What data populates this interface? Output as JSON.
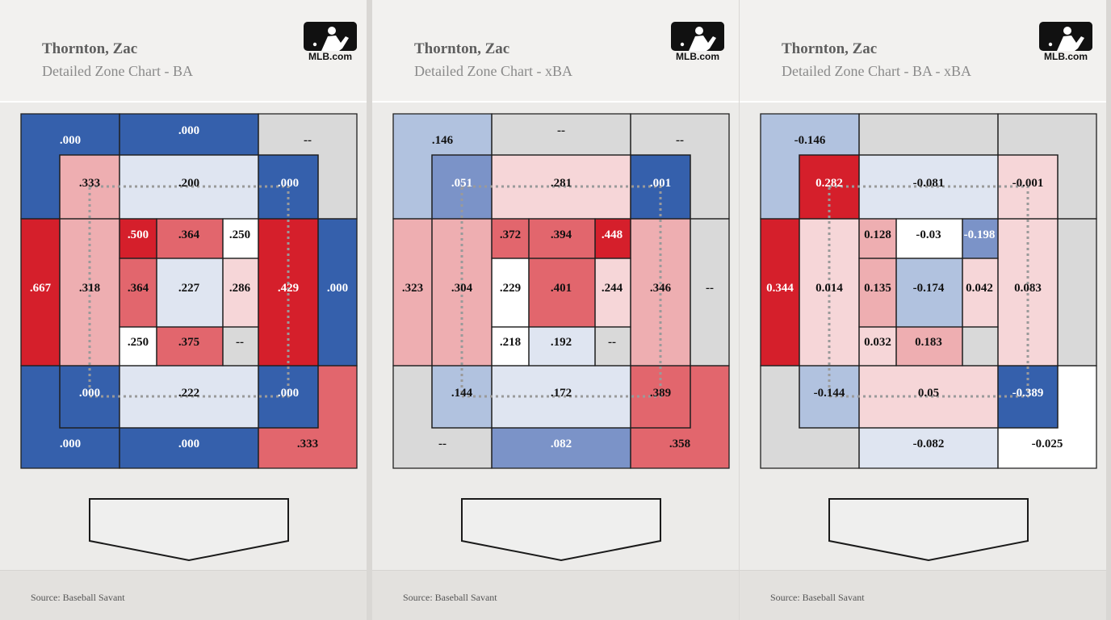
{
  "panels": [
    {
      "player": "Thornton, Zac",
      "subtitle": "Detailed Zone Chart - BA",
      "logo_text": "MLB.com",
      "source": "Source: Baseball Savant"
    },
    {
      "player": "Thornton, Zac",
      "subtitle": "Detailed Zone Chart - xBA",
      "logo_text": "MLB.com",
      "source": "Source: Baseball Savant"
    },
    {
      "player": "Thornton, Zac",
      "subtitle": "Detailed Zone Chart - BA - xBA",
      "logo_text": "MLB.com",
      "source": "Source: Baseball Savant"
    }
  ],
  "colors": {
    "blue_dark": "#3560ac",
    "blue_mid": "#7b93c8",
    "blue_light": "#b1c2df",
    "blue_pale": "#dfe5f1",
    "white": "#ffffff",
    "gray": "#d9d9d9",
    "red_pale": "#f6d6d8",
    "red_light": "#eeaeb1",
    "red_mid": "#e2666d",
    "red_dark": "#d51f2b"
  },
  "chart_data": [
    {
      "type": "heatmap",
      "title": "Detailed Zone Chart - BA",
      "zones": {
        "out_top_left": {
          "label": ".000",
          "color": "blue_dark"
        },
        "out_top_mid": {
          "label": ".000",
          "color": "blue_dark"
        },
        "out_top_right": {
          "label": "--",
          "color": "gray"
        },
        "out_left": {
          "label": ".667",
          "color": "red_dark"
        },
        "out_right": {
          "label": ".000",
          "color": "blue_dark"
        },
        "out_bot_left": {
          "label": ".000",
          "color": "blue_dark"
        },
        "out_bot_mid": {
          "label": ".000",
          "color": "blue_dark"
        },
        "out_bot_right": {
          "label": ".333",
          "color": "red_mid"
        },
        "sh_top_left": {
          "label": ".333",
          "color": "red_light"
        },
        "sh_top_mid": {
          "label": ".200",
          "color": "blue_pale"
        },
        "sh_top_right": {
          "label": ".000",
          "color": "blue_dark"
        },
        "sh_left": {
          "label": ".318",
          "color": "red_light"
        },
        "sh_right": {
          "label": ".429",
          "color": "red_dark"
        },
        "sh_bot_left": {
          "label": ".000",
          "color": "blue_dark"
        },
        "sh_bot_mid": {
          "label": ".222",
          "color": "blue_pale"
        },
        "sh_bot_right": {
          "label": ".000",
          "color": "blue_dark"
        },
        "z1": {
          "label": ".500",
          "color": "red_dark"
        },
        "z2": {
          "label": ".364",
          "color": "red_mid"
        },
        "z3": {
          "label": ".250",
          "color": "white"
        },
        "z4": {
          "label": ".364",
          "color": "red_mid"
        },
        "z5": {
          "label": ".227",
          "color": "blue_pale"
        },
        "z6": {
          "label": ".286",
          "color": "red_pale"
        },
        "z7": {
          "label": ".250",
          "color": "white"
        },
        "z8": {
          "label": ".375",
          "color": "red_mid"
        },
        "z9": {
          "label": "--",
          "color": "gray"
        }
      }
    },
    {
      "type": "heatmap",
      "title": "Detailed Zone Chart - xBA",
      "zones": {
        "out_top_left": {
          "label": ".146",
          "color": "blue_light"
        },
        "out_top_mid": {
          "label": "--",
          "color": "gray"
        },
        "out_top_right": {
          "label": "--",
          "color": "gray"
        },
        "out_left": {
          "label": ".323",
          "color": "red_light"
        },
        "out_right": {
          "label": "--",
          "color": "gray"
        },
        "out_bot_left": {
          "label": "--",
          "color": "gray"
        },
        "out_bot_mid": {
          "label": ".082",
          "color": "blue_mid"
        },
        "out_bot_right": {
          "label": ".358",
          "color": "red_mid"
        },
        "sh_top_left": {
          "label": ".051",
          "color": "blue_mid"
        },
        "sh_top_mid": {
          "label": ".281",
          "color": "red_pale"
        },
        "sh_top_right": {
          "label": ".001",
          "color": "blue_dark"
        },
        "sh_left": {
          "label": ".304",
          "color": "red_light"
        },
        "sh_right": {
          "label": ".346",
          "color": "red_light"
        },
        "sh_bot_left": {
          "label": ".144",
          "color": "blue_light"
        },
        "sh_bot_mid": {
          "label": ".172",
          "color": "blue_pale"
        },
        "sh_bot_right": {
          "label": ".389",
          "color": "red_mid"
        },
        "z1": {
          "label": ".372",
          "color": "red_mid"
        },
        "z2": {
          "label": ".394",
          "color": "red_mid"
        },
        "z3": {
          "label": ".448",
          "color": "red_dark"
        },
        "z4": {
          "label": ".229",
          "color": "white"
        },
        "z5": {
          "label": ".401",
          "color": "red_mid"
        },
        "z6": {
          "label": ".244",
          "color": "red_pale"
        },
        "z7": {
          "label": ".218",
          "color": "white"
        },
        "z8": {
          "label": ".192",
          "color": "blue_pale"
        },
        "z9": {
          "label": "--",
          "color": "gray"
        }
      }
    },
    {
      "type": "heatmap",
      "title": "Detailed Zone Chart - BA - xBA",
      "zones": {
        "out_top_left": {
          "label": "-0.146",
          "color": "blue_light"
        },
        "out_top_mid": {
          "label": "",
          "color": "gray"
        },
        "out_top_right": {
          "label": "",
          "color": "gray"
        },
        "out_left": {
          "label": "0.344",
          "color": "red_dark"
        },
        "out_right": {
          "label": "",
          "color": "gray"
        },
        "out_bot_left": {
          "label": "",
          "color": "gray"
        },
        "out_bot_mid": {
          "label": "-0.082",
          "color": "blue_pale"
        },
        "out_bot_right": {
          "label": "-0.025",
          "color": "white"
        },
        "sh_top_left": {
          "label": "0.282",
          "color": "red_dark"
        },
        "sh_top_mid": {
          "label": "-0.081",
          "color": "blue_pale"
        },
        "sh_top_right": {
          "label": "-0.001",
          "color": "red_pale"
        },
        "sh_left": {
          "label": "0.014",
          "color": "red_pale"
        },
        "sh_right": {
          "label": "0.083",
          "color": "red_pale"
        },
        "sh_bot_left": {
          "label": "-0.144",
          "color": "blue_light"
        },
        "sh_bot_mid": {
          "label": "0.05",
          "color": "red_pale"
        },
        "sh_bot_right": {
          "label": "-0.389",
          "color": "blue_dark"
        },
        "z1": {
          "label": "0.128",
          "color": "red_light"
        },
        "z2": {
          "label": "-0.03",
          "color": "white"
        },
        "z3": {
          "label": "-0.198",
          "color": "blue_mid"
        },
        "z4": {
          "label": "0.135",
          "color": "red_light"
        },
        "z5": {
          "label": "-0.174",
          "color": "blue_light"
        },
        "z6": {
          "label": "0.042",
          "color": "red_pale"
        },
        "z7": {
          "label": "0.032",
          "color": "red_pale"
        },
        "z8": {
          "label": "0.183",
          "color": "red_light"
        },
        "z9": {
          "label": "",
          "color": "gray"
        }
      }
    }
  ]
}
